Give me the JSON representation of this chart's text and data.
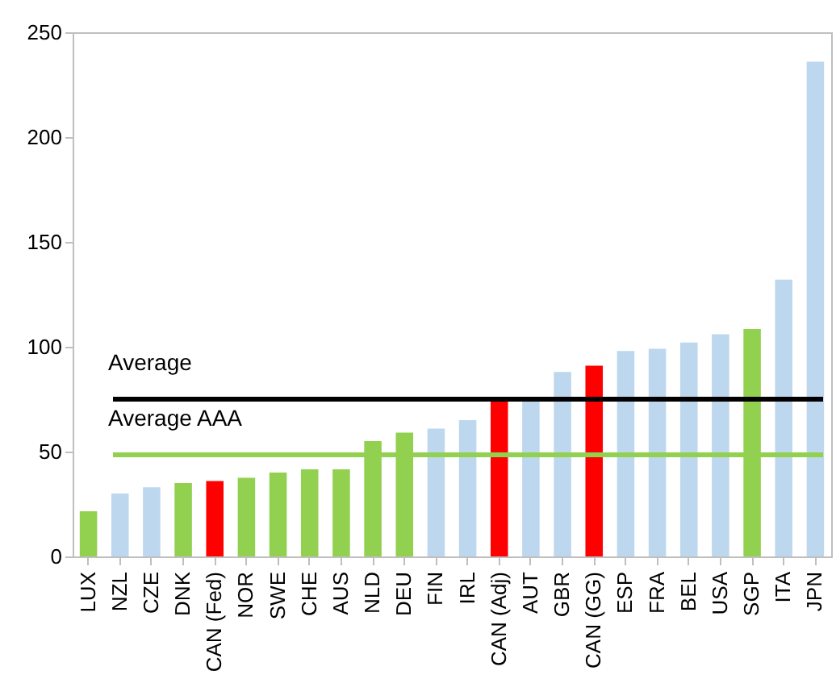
{
  "chart_data": {
    "type": "bar",
    "categories": [
      "LUX",
      "NZL",
      "CZE",
      "DNK",
      "CAN (Fed)",
      "NOR",
      "SWE",
      "CHE",
      "AUS",
      "NLD",
      "DEU",
      "FIN",
      "IRL",
      "CAN (Adj)",
      "AUT",
      "GBR",
      "CAN (GG)",
      "ESP",
      "FRA",
      "BEL",
      "USA",
      "SGP",
      "ITA",
      "JPN"
    ],
    "values": [
      21.5,
      30,
      33,
      35,
      36,
      37.5,
      40,
      41.5,
      41.5,
      55,
      59,
      61,
      65,
      74,
      74,
      88,
      91,
      98,
      99,
      102,
      106,
      108.5,
      132,
      236
    ],
    "colors": [
      "#92d050",
      "#bdd7ee",
      "#bdd7ee",
      "#92d050",
      "#ff0000",
      "#92d050",
      "#92d050",
      "#92d050",
      "#92d050",
      "#92d050",
      "#92d050",
      "#bdd7ee",
      "#bdd7ee",
      "#ff0000",
      "#bdd7ee",
      "#bdd7ee",
      "#ff0000",
      "#bdd7ee",
      "#bdd7ee",
      "#bdd7ee",
      "#bdd7ee",
      "#92d050",
      "#bdd7ee",
      "#bdd7ee"
    ],
    "ylim": [
      0,
      250
    ],
    "yticks": [
      0,
      50,
      100,
      150,
      200,
      250
    ],
    "ref_lines": [
      {
        "axis": "y",
        "value": 75,
        "label": "Average",
        "color": "#000000"
      },
      {
        "axis": "y",
        "value": 48.5,
        "label": "Average AAA",
        "color": "#92d050"
      }
    ]
  }
}
